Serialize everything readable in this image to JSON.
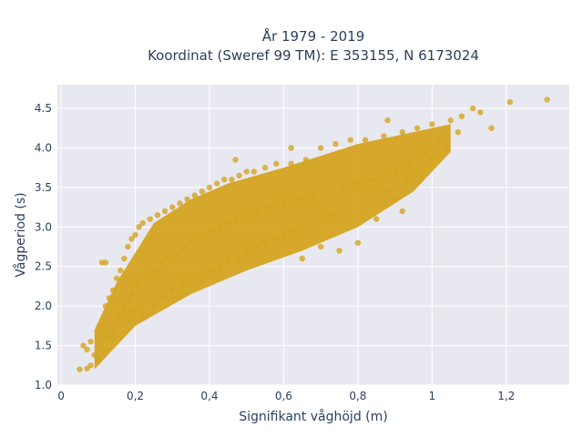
{
  "chart_data": {
    "type": "scatter",
    "title_line1": "År 1979 - 2019",
    "title_line2": "Koordinat (Sweref 99 TM): E 353155, N 6173024",
    "xlabel": "Signifikant våghöjd (m)",
    "ylabel": "Vågperiod (s)",
    "xlim": [
      -0.01,
      1.37
    ],
    "ylim": [
      1.0,
      4.8
    ],
    "x_ticks": [
      0,
      0.2,
      0.4,
      0.6,
      0.8,
      1.0,
      1.2
    ],
    "x_tick_labels": [
      "0",
      "0,2",
      "0,4",
      "0,6",
      "0,8",
      "1",
      "1,2"
    ],
    "y_ticks": [
      1.0,
      1.5,
      2.0,
      2.5,
      3.0,
      3.5,
      4.0,
      4.5
    ],
    "y_tick_labels": [
      "1.0",
      "1.5",
      "2.0",
      "2.5",
      "3.0",
      "3.5",
      "4.0",
      "4.5"
    ],
    "grid": true,
    "legend": "none",
    "colors": {
      "marker": "#d4a421",
      "plot_bg": "#e8e8f0",
      "grid": "#ffffff",
      "text": "#2a3f5f"
    },
    "series": [
      {
        "points": [
          [
            0.05,
            1.2
          ],
          [
            0.07,
            1.21
          ],
          [
            0.08,
            1.25
          ],
          [
            0.06,
            1.5
          ],
          [
            0.07,
            1.45
          ],
          [
            0.08,
            1.55
          ],
          [
            0.09,
            1.38
          ],
          [
            0.1,
            1.62
          ],
          [
            0.1,
            1.3
          ],
          [
            0.11,
            1.75
          ],
          [
            0.12,
            2.0
          ],
          [
            0.12,
            1.45
          ],
          [
            0.13,
            2.1
          ],
          [
            0.13,
            1.6
          ],
          [
            0.14,
            2.2
          ],
          [
            0.14,
            1.7
          ],
          [
            0.15,
            2.35
          ],
          [
            0.15,
            1.85
          ],
          [
            0.11,
            2.55
          ],
          [
            0.12,
            2.55
          ],
          [
            0.16,
            2.45
          ],
          [
            0.16,
            1.9
          ],
          [
            0.17,
            2.6
          ],
          [
            0.17,
            2.0
          ],
          [
            0.18,
            2.75
          ],
          [
            0.18,
            2.1
          ],
          [
            0.19,
            2.85
          ],
          [
            0.19,
            2.15
          ],
          [
            0.2,
            2.9
          ],
          [
            0.2,
            2.25
          ],
          [
            0.21,
            3.0
          ],
          [
            0.21,
            2.3
          ],
          [
            0.22,
            3.05
          ],
          [
            0.23,
            2.4
          ],
          [
            0.24,
            3.1
          ],
          [
            0.25,
            2.45
          ],
          [
            0.26,
            3.15
          ],
          [
            0.27,
            2.55
          ],
          [
            0.28,
            3.2
          ],
          [
            0.29,
            2.6
          ],
          [
            0.3,
            3.25
          ],
          [
            0.31,
            2.65
          ],
          [
            0.32,
            3.3
          ],
          [
            0.33,
            2.75
          ],
          [
            0.34,
            3.35
          ],
          [
            0.35,
            2.8
          ],
          [
            0.36,
            3.4
          ],
          [
            0.37,
            2.85
          ],
          [
            0.38,
            3.45
          ],
          [
            0.39,
            2.9
          ],
          [
            0.4,
            3.5
          ],
          [
            0.41,
            2.95
          ],
          [
            0.42,
            3.55
          ],
          [
            0.43,
            3.0
          ],
          [
            0.44,
            3.6
          ],
          [
            0.45,
            3.05
          ],
          [
            0.46,
            3.6
          ],
          [
            0.47,
            3.1
          ],
          [
            0.48,
            3.65
          ],
          [
            0.47,
            3.85
          ],
          [
            0.5,
            3.7
          ],
          [
            0.51,
            3.15
          ],
          [
            0.52,
            3.7
          ],
          [
            0.53,
            3.2
          ],
          [
            0.55,
            3.75
          ],
          [
            0.56,
            3.25
          ],
          [
            0.58,
            3.8
          ],
          [
            0.6,
            3.3
          ],
          [
            0.62,
            3.8
          ],
          [
            0.62,
            4.0
          ],
          [
            0.64,
            3.35
          ],
          [
            0.66,
            3.85
          ],
          [
            0.68,
            3.4
          ],
          [
            0.7,
            4.0
          ],
          [
            0.72,
            3.45
          ],
          [
            0.74,
            4.05
          ],
          [
            0.76,
            3.5
          ],
          [
            0.78,
            4.1
          ],
          [
            0.8,
            3.55
          ],
          [
            0.82,
            4.1
          ],
          [
            0.84,
            3.6
          ],
          [
            0.87,
            4.15
          ],
          [
            0.88,
            4.35
          ],
          [
            0.9,
            3.7
          ],
          [
            0.92,
            4.2
          ],
          [
            0.94,
            3.8
          ],
          [
            0.96,
            4.25
          ],
          [
            0.98,
            3.95
          ],
          [
            1.0,
            4.3
          ],
          [
            1.02,
            4.1
          ],
          [
            1.05,
            4.35
          ],
          [
            1.08,
            4.4
          ],
          [
            1.11,
            4.5
          ],
          [
            1.13,
            4.45
          ],
          [
            1.16,
            4.25
          ],
          [
            1.21,
            4.58
          ],
          [
            1.31,
            4.61
          ],
          [
            0.3,
            2.2
          ],
          [
            0.35,
            2.35
          ],
          [
            0.4,
            2.45
          ],
          [
            0.45,
            2.6
          ],
          [
            0.5,
            2.7
          ],
          [
            0.55,
            2.8
          ],
          [
            0.6,
            2.9
          ],
          [
            0.65,
            2.6
          ],
          [
            0.7,
            2.75
          ],
          [
            0.75,
            2.7
          ],
          [
            0.8,
            2.8
          ],
          [
            0.85,
            3.1
          ],
          [
            0.9,
            3.35
          ],
          [
            0.92,
            3.2
          ],
          [
            0.2,
            1.95
          ],
          [
            0.22,
            1.85
          ],
          [
            0.25,
            2.0
          ],
          [
            0.28,
            2.1
          ],
          [
            0.33,
            2.3
          ],
          [
            0.38,
            2.3
          ],
          [
            0.43,
            2.5
          ],
          [
            0.48,
            2.6
          ],
          [
            0.53,
            2.75
          ],
          [
            0.58,
            2.85
          ],
          [
            0.63,
            2.95
          ],
          [
            0.68,
            3.05
          ],
          [
            0.73,
            3.15
          ],
          [
            0.78,
            3.25
          ],
          [
            0.83,
            3.35
          ],
          [
            0.88,
            3.45
          ],
          [
            0.93,
            3.6
          ],
          [
            0.97,
            3.7
          ],
          [
            1.0,
            3.85
          ],
          [
            1.04,
            4.0
          ],
          [
            1.07,
            4.2
          ]
        ]
      }
    ],
    "band": {
      "lower": [
        [
          0.09,
          1.2
        ],
        [
          0.2,
          1.75
        ],
        [
          0.35,
          2.15
        ],
        [
          0.5,
          2.45
        ],
        [
          0.65,
          2.7
        ],
        [
          0.8,
          3.0
        ],
        [
          0.95,
          3.45
        ],
        [
          1.05,
          3.95
        ]
      ],
      "upper": [
        [
          0.09,
          1.7
        ],
        [
          0.15,
          2.3
        ],
        [
          0.25,
          3.05
        ],
        [
          0.35,
          3.35
        ],
        [
          0.45,
          3.55
        ],
        [
          0.6,
          3.75
        ],
        [
          0.8,
          4.05
        ],
        [
          1.05,
          4.3
        ]
      ]
    }
  }
}
